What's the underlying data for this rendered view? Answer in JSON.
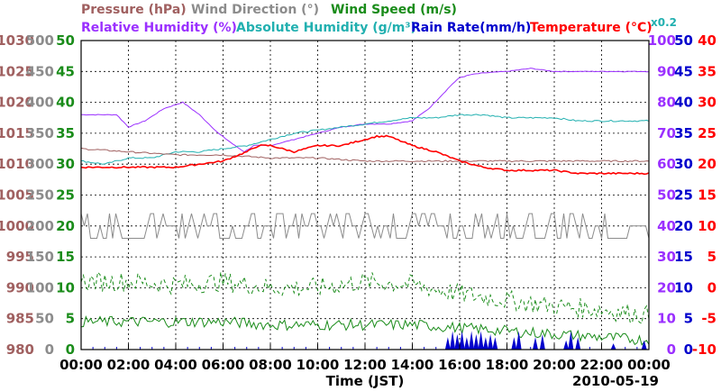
{
  "chart_data": {
    "type": "line",
    "date": "2010-05-19",
    "xlabel": "Time (JST)",
    "x_ticks": [
      "00:00",
      "02:00",
      "04:00",
      "06:00",
      "08:00",
      "10:00",
      "12:00",
      "14:00",
      "16:00",
      "18:00",
      "20:00",
      "22:00",
      "00:00"
    ],
    "grid": true,
    "legend": {
      "row1": [
        {
          "label": "Pressure (hPa)",
          "color": "#a06060"
        },
        {
          "label": "Wind Direction (°)",
          "color": "#8c8c8c"
        },
        {
          "label": "Wind Speed (m/s)",
          "color": "#1a8c1a"
        }
      ],
      "row2": [
        {
          "label": "Relative Humidity (%)",
          "color": "#9b30ff"
        },
        {
          "label": "Absolute Humidity (g/m³)",
          "color": "#22b0b0"
        },
        {
          "label": "Rain Rate(mm/h)",
          "color": "#0000cc"
        },
        {
          "label": "Temperature (°C)",
          "color": "#ff0000"
        },
        {
          "label": "x0.2",
          "color": "#22b0b0"
        }
      ]
    },
    "axes": {
      "pressure": {
        "color": "#a06060",
        "ticks": [
          "1030",
          "1025",
          "1020",
          "1015",
          "1010",
          "1005",
          "1000",
          "995",
          "990",
          "985",
          "980"
        ],
        "range": [
          980,
          1030
        ]
      },
      "wind_direction": {
        "color": "#8c8c8c",
        "ticks": [
          "500",
          "450",
          "400",
          "350",
          "300",
          "250",
          "200",
          "150",
          "100",
          "50",
          "0"
        ],
        "range": [
          0,
          500
        ]
      },
      "wind_speed": {
        "color": "#1a8c1a",
        "ticks": [
          "50",
          "45",
          "40",
          "35",
          "30",
          "25",
          "20",
          "15",
          "10",
          "5",
          "0"
        ],
        "range": [
          0,
          50
        ]
      },
      "relative_humidity": {
        "color": "#9b30ff",
        "ticks": [
          "100",
          "90",
          "80",
          "70",
          "60",
          "50",
          "40",
          "30",
          "20",
          "10",
          "0"
        ],
        "range": [
          0,
          100
        ]
      },
      "rain_rate": {
        "color": "#0000cc",
        "ticks": [
          "50",
          "45",
          "40",
          "35",
          "30",
          "25",
          "20",
          "15",
          "10",
          "5",
          "0"
        ],
        "range": [
          0,
          50
        ]
      },
      "temperature": {
        "color": "#ff0000",
        "ticks": [
          "40",
          "35",
          "30",
          "25",
          "20",
          "15",
          "10",
          "5",
          "0",
          "-5",
          "-10"
        ],
        "range": [
          -10,
          40
        ]
      }
    },
    "series": [
      {
        "name": "Relative Humidity (%)",
        "axis": "relative_humidity",
        "color": "#9b30ff",
        "x": [
          0,
          1.5,
          2.0,
          2.7,
          3.5,
          4.3,
          5.0,
          5.8,
          6.5,
          6.9,
          7.3,
          8.0,
          9.0,
          10.0,
          11.0,
          12.0,
          13.0,
          14.0,
          14.7,
          15.2,
          15.7,
          16.0,
          16.5,
          17.0,
          18.0,
          19.0,
          20.0,
          21.0,
          22.0,
          23.0,
          24.0
        ],
        "y": [
          76,
          76,
          72,
          74,
          78,
          80,
          76,
          70,
          66,
          64,
          66,
          66,
          68,
          70,
          72,
          73,
          73,
          74,
          78,
          82,
          86,
          88,
          89,
          89.5,
          90,
          91,
          90,
          90,
          90,
          90,
          90
        ]
      },
      {
        "name": "Absolute Humidity (g/m³)",
        "axis": "temperature",
        "color": "#22b0b0",
        "x": [
          0,
          1,
          2,
          3,
          4,
          5,
          6,
          7,
          8,
          9,
          10,
          11,
          12,
          13,
          14,
          15,
          16,
          17,
          18,
          19,
          20,
          21,
          22,
          23,
          24
        ],
        "y": [
          20.5,
          20,
          21,
          21,
          22,
          22,
          22.5,
          23,
          24,
          25,
          25.5,
          26,
          26.5,
          27,
          27.5,
          27.5,
          28,
          28,
          27.5,
          27.5,
          27.5,
          27,
          27,
          27,
          27
        ]
      },
      {
        "name": "Pressure (hPa)",
        "axis": "pressure",
        "color": "#a06060",
        "x": [
          0,
          2,
          4,
          6,
          8,
          10,
          12,
          14,
          16,
          18,
          20,
          22,
          24
        ],
        "y": [
          1012.5,
          1012,
          1011.5,
          1011.5,
          1011,
          1011,
          1010.5,
          1010.5,
          1010.5,
          1010.5,
          1010.5,
          1010.5,
          1010.5
        ]
      },
      {
        "name": "Temperature (°C)",
        "axis": "temperature",
        "color": "#ff0000",
        "x": [
          0,
          1,
          2,
          3,
          4,
          5,
          6,
          7,
          7.5,
          8,
          9,
          10,
          11,
          12,
          12.5,
          13,
          14,
          15,
          16,
          17,
          18,
          19,
          20,
          21,
          22,
          23,
          24
        ],
        "y": [
          19.5,
          19.5,
          19.5,
          19.5,
          19.5,
          20,
          20.5,
          22,
          23,
          23,
          22,
          23,
          23,
          24,
          24.5,
          24.5,
          23,
          22,
          20.5,
          19.5,
          19,
          19,
          19,
          18.5,
          18.5,
          18.5,
          18.5
        ]
      },
      {
        "name": "Wind Direction (°)",
        "axis": "wind_direction",
        "color": "#8c8c8c",
        "style": "oscillating",
        "min": 180,
        "max": 220,
        "base": 200
      },
      {
        "name": "Wind Speed max (m/s)",
        "axis": "wind_speed",
        "color": "#1a8c1a",
        "style": "dashed",
        "x": [
          0,
          2,
          4,
          6,
          8,
          10,
          12,
          14,
          16,
          18,
          20,
          22,
          24
        ],
        "y": [
          11,
          11,
          10.5,
          11,
          10,
          10,
          11,
          10.5,
          9,
          8,
          7,
          6.5,
          5.5
        ]
      },
      {
        "name": "Wind Speed avg (m/s)",
        "axis": "wind_speed",
        "color": "#1a8c1a",
        "x": [
          0,
          2,
          4,
          6,
          8,
          10,
          12,
          14,
          16,
          18,
          20,
          22,
          24
        ],
        "y": [
          4.5,
          4.5,
          4.5,
          4.5,
          4,
          4,
          4,
          4,
          3.5,
          3,
          2.5,
          2,
          1.5
        ]
      },
      {
        "name": "Rain Rate(mm/h)",
        "axis": "rain_rate",
        "color": "#0000cc",
        "style": "bars",
        "x": [
          15.5,
          15.7,
          15.9,
          16.1,
          16.3,
          16.5,
          16.7,
          16.9,
          17.1,
          17.3,
          17.5,
          18.3,
          18.5,
          19.2,
          19.5,
          20.5,
          20.7,
          21.0,
          22.5,
          23.8
        ],
        "y": [
          2,
          3,
          2.5,
          3,
          2,
          3,
          2.5,
          3,
          2,
          2.5,
          2,
          2,
          3,
          2,
          2.5,
          1.5,
          3,
          2,
          1,
          1.5
        ]
      }
    ]
  }
}
